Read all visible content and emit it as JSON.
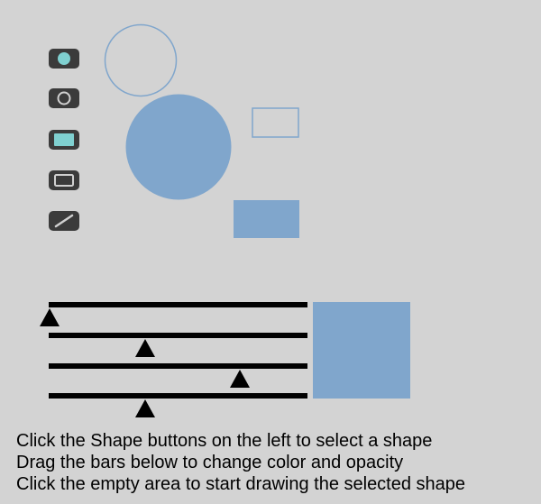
{
  "colors": {
    "background": "#d3d3d3",
    "button_bg": "#3b3b3b",
    "button_fg": "#7fd0d0",
    "shape": "#80a6cc",
    "bar": "#000000"
  },
  "tools": [
    {
      "name": "filled-circle-tool-button",
      "icon": "filled-circle-icon"
    },
    {
      "name": "outline-circle-tool-button",
      "icon": "outline-circle-icon"
    },
    {
      "name": "filled-rectangle-tool-button",
      "icon": "filled-rectangle-icon"
    },
    {
      "name": "outline-rectangle-tool-button",
      "icon": "outline-rectangle-icon"
    },
    {
      "name": "line-tool-button",
      "icon": "line-icon"
    }
  ],
  "sliders": [
    {
      "name": "red-slider",
      "value": 0.0
    },
    {
      "name": "green-slider",
      "value": 0.4
    },
    {
      "name": "blue-slider",
      "value": 0.8
    },
    {
      "name": "opacity-slider",
      "value": 0.4
    }
  ],
  "instructions": {
    "line1": "Click the Shape buttons on the left to select a shape",
    "line2": "Drag the bars below to change color and opacity",
    "line3": "Click the empty area to start drawing the selected shape"
  }
}
